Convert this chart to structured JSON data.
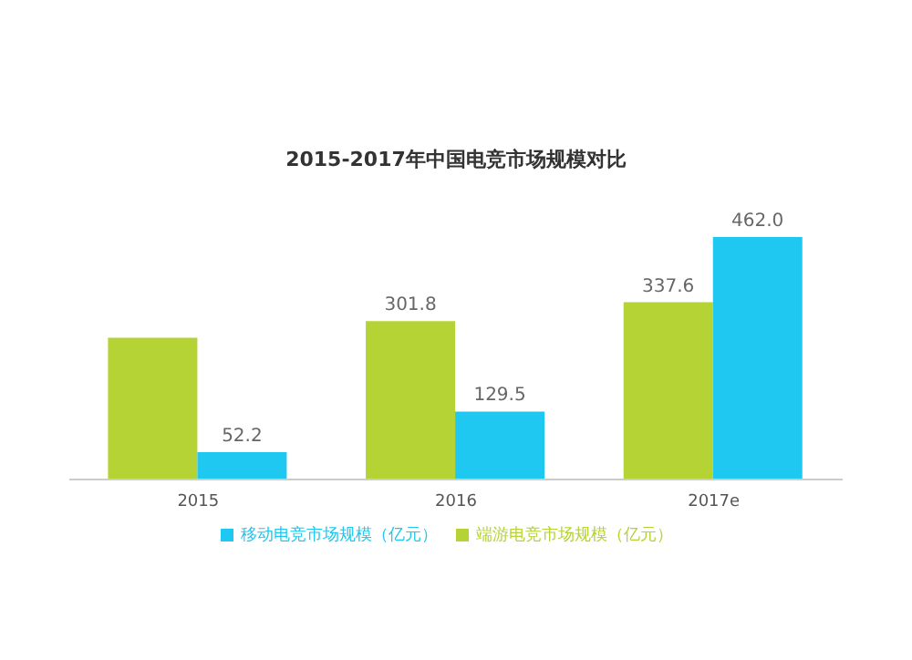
{
  "chart_data": {
    "type": "bar",
    "title": "2015-2017年中国电竞市场规模对比",
    "categories": [
      "2015",
      "2016",
      "2017e"
    ],
    "series": [
      {
        "name": "端游电竞市场规模（亿元）",
        "color": "#b5d334",
        "values": [
          270,
          301.8,
          337.6
        ],
        "value_labels": [
          null,
          "301.8",
          "337.6"
        ]
      },
      {
        "name": "移动电竞市场规模（亿元）",
        "color": "#1fc8f0",
        "values": [
          52.2,
          129.5,
          462.0
        ],
        "value_labels": [
          "52.2",
          "129.5",
          "462.0"
        ]
      }
    ],
    "legend": "bottom",
    "grid": false
  }
}
